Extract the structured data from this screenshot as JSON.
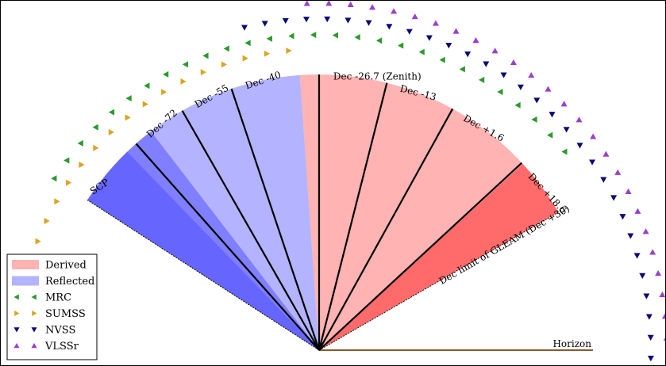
{
  "diagram": {
    "dec_lines": [
      {
        "label": "Dec -72"
      },
      {
        "label": "Dec -55"
      },
      {
        "label": "Dec -40"
      },
      {
        "label": "Dec -26.7 (Zenith)"
      },
      {
        "label": "Dec -13"
      },
      {
        "label": "Dec +1.6"
      },
      {
        "label": "Dec +18.6"
      }
    ],
    "scp_label": "SCP",
    "gleam_limit_label": "Dec limit of GLEAM (Dec +30)",
    "horizon_label": "Horizon"
  },
  "legend": {
    "items": [
      {
        "label": "Derived",
        "swatch": "rect",
        "color": "#ffb3b3"
      },
      {
        "label": "Reflected",
        "swatch": "rect",
        "color": "#b3b3ff"
      },
      {
        "label": "MRC",
        "swatch": "tri-left",
        "color": "#2a9a2a"
      },
      {
        "label": "SUMSS",
        "swatch": "tri-right",
        "color": "#daa520"
      },
      {
        "label": "NVSS",
        "swatch": "tri-down",
        "color": "#0a0a7a"
      },
      {
        "label": "VLSSr",
        "swatch": "tri-up",
        "color": "#9a3fd0"
      }
    ]
  },
  "colors": {
    "derived": "#ffb3b3",
    "derived_dark": "#ff6b6b",
    "reflected": "#b3b3ff",
    "reflected_mid": "#7f7fff",
    "reflected_dark": "#6666ff",
    "horizon": "#8b5a2b"
  }
}
